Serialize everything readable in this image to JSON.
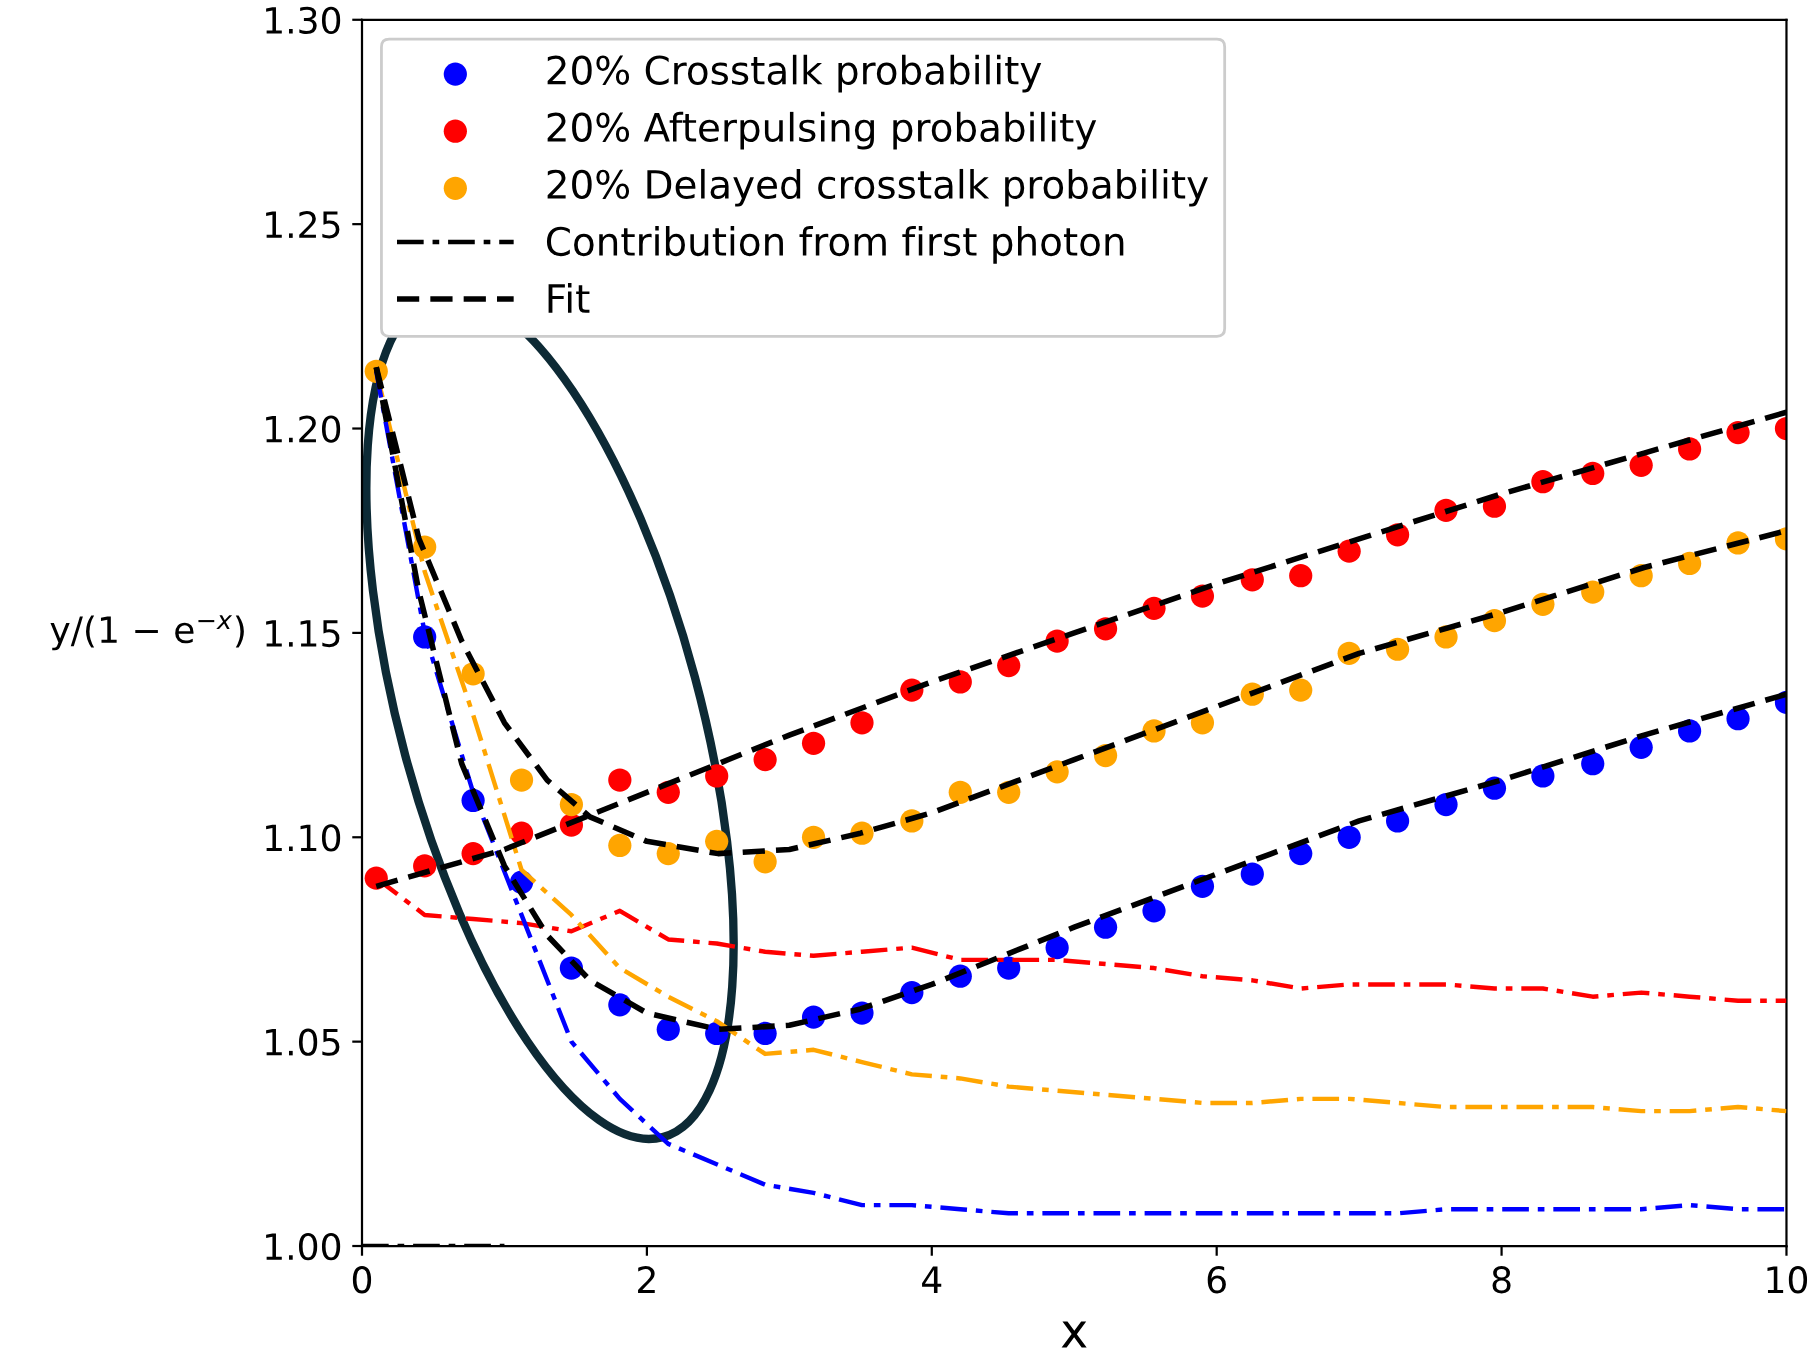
{
  "chart_data": {
    "type": "scatter",
    "xlabel": "x",
    "ylabel": "y/(1 − e$^{−x}$)",
    "xlim": [
      0,
      10
    ],
    "ylim": [
      1.0,
      1.3
    ],
    "xticks": [
      0,
      2,
      4,
      6,
      8,
      10
    ],
    "yticks": [
      {
        "value": 1.0,
        "label": "1.00"
      },
      {
        "value": 1.05,
        "label": "1.05"
      },
      {
        "value": 1.1,
        "label": "1.10"
      },
      {
        "value": 1.15,
        "label": "1.15"
      },
      {
        "value": 1.2,
        "label": "1.20"
      },
      {
        "value": 1.25,
        "label": "1.25"
      },
      {
        "value": 1.3,
        "label": "1.30"
      }
    ],
    "x": [
      0.1,
      0.44,
      0.78,
      1.12,
      1.47,
      1.81,
      2.15,
      2.49,
      2.83,
      3.17,
      3.51,
      3.86,
      4.2,
      4.54,
      4.88,
      5.22,
      5.56,
      5.9,
      6.25,
      6.59,
      6.93,
      7.27,
      7.61,
      7.95,
      8.29,
      8.64,
      8.98,
      9.32,
      9.66,
      10.0
    ],
    "grid": false,
    "legend": "top left",
    "series": [
      {
        "name": "20% Crosstalk probability",
        "marker": "circle",
        "color": "#0000ff",
        "values": [
          null,
          1.149,
          1.109,
          1.089,
          1.068,
          1.059,
          1.053,
          1.052,
          1.052,
          1.056,
          1.057,
          1.062,
          1.066,
          1.068,
          1.073,
          1.078,
          1.082,
          1.088,
          1.091,
          1.096,
          1.1,
          1.104,
          1.108,
          1.112,
          1.115,
          1.118,
          1.122,
          1.126,
          1.129,
          1.133
        ]
      },
      {
        "name": "20% Afterpulsing probability",
        "marker": "circle",
        "color": "#ff0000",
        "values": [
          1.09,
          1.093,
          1.096,
          1.101,
          1.103,
          1.114,
          1.111,
          1.115,
          1.119,
          1.123,
          1.128,
          1.136,
          1.138,
          1.142,
          1.148,
          1.151,
          1.156,
          1.159,
          1.163,
          1.164,
          1.17,
          1.174,
          1.18,
          1.181,
          1.187,
          1.189,
          1.191,
          1.195,
          1.199,
          1.2
        ]
      },
      {
        "name": "20% Delayed crosstalk probability",
        "marker": "circle",
        "color": "#ffa500",
        "values": [
          1.214,
          1.171,
          1.14,
          1.114,
          1.108,
          1.098,
          1.096,
          1.099,
          1.094,
          1.1,
          1.101,
          1.104,
          1.111,
          1.111,
          1.116,
          1.12,
          1.126,
          1.128,
          1.135,
          1.136,
          1.145,
          1.146,
          1.149,
          1.153,
          1.157,
          1.16,
          1.164,
          1.167,
          1.172,
          1.173
        ]
      },
      {
        "type": "line",
        "line_style": "dashdot",
        "color": "#ff0000",
        "values": [
          1.09,
          1.081,
          1.08,
          1.079,
          1.077,
          1.082,
          1.075,
          1.074,
          1.072,
          1.071,
          1.072,
          1.073,
          1.07,
          1.07,
          1.07,
          1.069,
          1.068,
          1.066,
          1.065,
          1.063,
          1.064,
          1.064,
          1.064,
          1.063,
          1.063,
          1.061,
          1.062,
          1.061,
          1.06,
          1.06
        ]
      },
      {
        "type": "line",
        "line_style": "dashdot",
        "color": "#ffa500",
        "values": [
          1.214,
          1.165,
          1.13,
          1.092,
          1.081,
          1.068,
          1.061,
          1.055,
          1.047,
          1.048,
          1.045,
          1.042,
          1.041,
          1.039,
          1.038,
          1.037,
          1.036,
          1.035,
          1.035,
          1.036,
          1.036,
          1.035,
          1.034,
          1.034,
          1.034,
          1.034,
          1.033,
          1.033,
          1.034,
          1.033
        ]
      },
      {
        "type": "line",
        "line_style": "dashdot",
        "color": "#0000ff",
        "values": [
          1.214,
          1.15,
          1.111,
          1.081,
          1.05,
          1.036,
          1.025,
          1.02,
          1.015,
          1.013,
          1.01,
          1.01,
          1.009,
          1.008,
          1.008,
          1.008,
          1.008,
          1.008,
          1.008,
          1.008,
          1.008,
          1.008,
          1.009,
          1.009,
          1.009,
          1.009,
          1.009,
          1.01,
          1.009,
          1.009
        ]
      },
      {
        "type": "line",
        "line_style": "dashdot",
        "name": "Contribution from first photon",
        "color": "#000000",
        "x": [
          0,
          1
        ],
        "values": [
          1.0,
          1.0
        ]
      },
      {
        "type": "line",
        "line_style": "dashed",
        "name": "Fit",
        "color": "#000000",
        "x": [
          0.1,
          1,
          2,
          3,
          4,
          5,
          6,
          7,
          8,
          9,
          10
        ],
        "values": [
          1.088,
          1.097,
          1.111,
          1.125,
          1.138,
          1.15,
          1.162,
          1.173,
          1.184,
          1.194,
          1.204
        ]
      },
      {
        "type": "line",
        "line_style": "dashed",
        "color": "#000000",
        "x": [
          0.1,
          0.4,
          0.7,
          1.0,
          1.3,
          1.6,
          2.0,
          2.5,
          3.0,
          3.5,
          4,
          5,
          6,
          7,
          8,
          9,
          10
        ],
        "values": [
          1.215,
          1.173,
          1.148,
          1.128,
          1.114,
          1.105,
          1.099,
          1.096,
          1.097,
          1.101,
          1.106,
          1.119,
          1.132,
          1.145,
          1.155,
          1.166,
          1.175
        ]
      },
      {
        "type": "line",
        "line_style": "dashed",
        "color": "#000000",
        "x": [
          0.1,
          0.4,
          0.7,
          1.0,
          1.3,
          1.6,
          2.0,
          2.5,
          3.0,
          3.5,
          4,
          5,
          6,
          7,
          8,
          9,
          10
        ],
        "values": [
          1.215,
          1.16,
          1.118,
          1.093,
          1.076,
          1.065,
          1.057,
          1.053,
          1.054,
          1.058,
          1.064,
          1.078,
          1.091,
          1.104,
          1.114,
          1.125,
          1.135
        ]
      }
    ]
  }
}
